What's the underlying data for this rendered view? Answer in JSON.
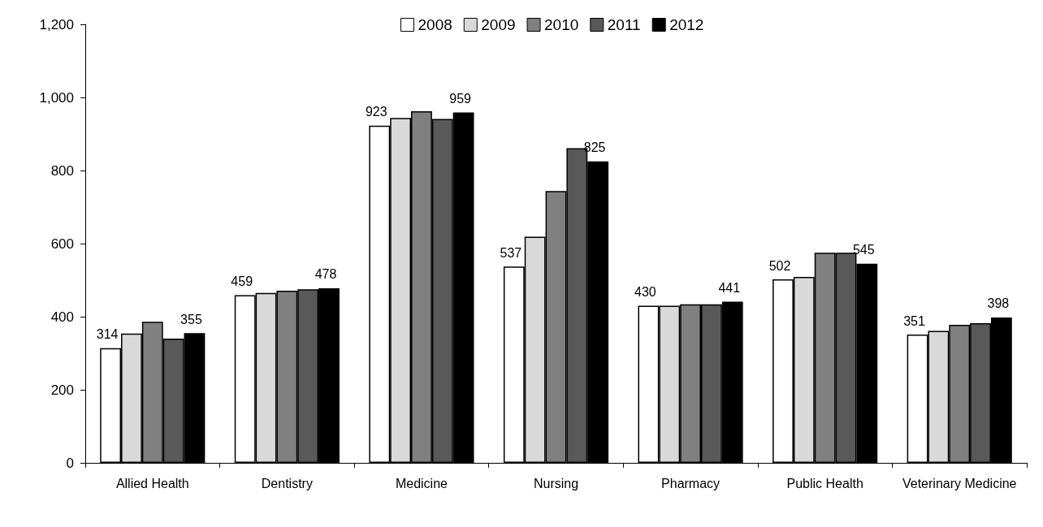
{
  "chart_data": {
    "type": "bar",
    "categories": [
      "Allied Health",
      "Dentistry",
      "Medicine",
      "Nursing",
      "Pharmacy",
      "Public Health",
      "Veterinary Medicine"
    ],
    "series": [
      {
        "name": "2008",
        "color": "#ffffff",
        "values": [
          314,
          459,
          923,
          537,
          430,
          502,
          351
        ],
        "value_labels": [
          "314",
          "459",
          "923",
          "537",
          "430",
          "502",
          "351"
        ]
      },
      {
        "name": "2009",
        "color": "#d9d9d9",
        "values": [
          354,
          465,
          944,
          619,
          430,
          509,
          361
        ]
      },
      {
        "name": "2010",
        "color": "#808080",
        "values": [
          386,
          471,
          962,
          744,
          434,
          575,
          378
        ]
      },
      {
        "name": "2011",
        "color": "#595959",
        "values": [
          340,
          475,
          941,
          861,
          434,
          575,
          382
        ]
      },
      {
        "name": "2012",
        "color": "#000000",
        "values": [
          355,
          478,
          959,
          825,
          441,
          545,
          398
        ],
        "value_labels": [
          "355",
          "478",
          "959",
          "825",
          "441",
          "545",
          "398"
        ]
      }
    ],
    "ylim": [
      0,
      1200
    ],
    "yticks": [
      0,
      {
        "value": 200,
        "label": "200"
      },
      {
        "value": 400,
        "label": "400"
      },
      {
        "value": 600,
        "label": "600"
      },
      {
        "value": 800,
        "label": "800"
      },
      {
        "value": 1000,
        "label": "1,000"
      },
      {
        "value": 1200,
        "label": "1,200"
      }
    ],
    "grid": false,
    "legend": "top"
  }
}
